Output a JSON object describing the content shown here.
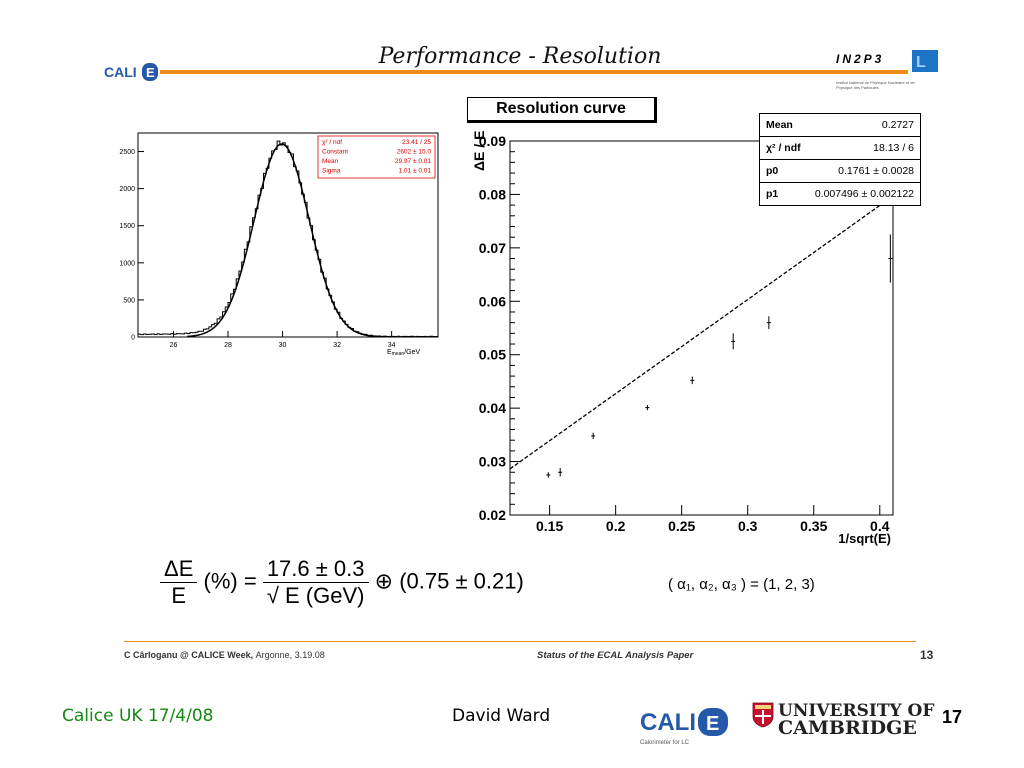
{
  "header": {
    "title": "Performance - Resolution",
    "in2p3": "IN2P3",
    "in2p3_sub": "Institut National de Physique Nucléaire et de Physique des Particules",
    "calice_logo_text": "CALICE",
    "calice_logo_sub": "Calorimeter for ILC"
  },
  "chart_data": [
    {
      "type": "histogram",
      "xlabel": "E_mean /GeV",
      "xlabel_main": "E",
      "xlabel_sub": "mean",
      "xlabel_unit": "/GeV",
      "xlim": [
        24.7,
        35.7
      ],
      "ylim": [
        0,
        2750
      ],
      "xticks": [
        26,
        28,
        30,
        32,
        34
      ],
      "yticks": [
        0,
        500,
        1000,
        1500,
        2000,
        2500
      ],
      "fit": {
        "constant": 2602,
        "mean": 29.97,
        "sigma": 1.01
      },
      "stats": [
        {
          "label": "χ² / ndf",
          "value": "23.41 / 25"
        },
        {
          "label": "Constant",
          "value": "2602 ± 15.0"
        },
        {
          "label": "Mean",
          "value": "29.97 ± 0.01"
        },
        {
          "label": "Sigma",
          "value": "1.01 ± 0.01"
        }
      ],
      "colors": {
        "stats": "#e00000",
        "line": "#000000"
      }
    },
    {
      "type": "scatter",
      "title": "Resolution curve",
      "xlabel": "1/sqrt(E)",
      "ylabel": "ΔE / E",
      "xlim": [
        0.12,
        0.41
      ],
      "ylim": [
        0.02,
        0.09
      ],
      "xticks": [
        0.15,
        0.2,
        0.25,
        0.3,
        0.35,
        0.4
      ],
      "yticks": [
        0.02,
        0.03,
        0.04,
        0.05,
        0.06,
        0.07,
        0.08,
        0.09
      ],
      "points": [
        {
          "x": 0.149,
          "y": 0.0275,
          "err": 0.0005
        },
        {
          "x": 0.158,
          "y": 0.028,
          "err": 0.0008
        },
        {
          "x": 0.183,
          "y": 0.0348,
          "err": 0.0006
        },
        {
          "x": 0.224,
          "y": 0.0401,
          "err": 0.0005
        },
        {
          "x": 0.258,
          "y": 0.0452,
          "err": 0.0007
        },
        {
          "x": 0.289,
          "y": 0.0525,
          "err": 0.0015
        },
        {
          "x": 0.316,
          "y": 0.056,
          "err": 0.0012
        },
        {
          "x": 0.408,
          "y": 0.068,
          "err": 0.0045
        }
      ],
      "fit_line": {
        "p0": 0.1761,
        "p1": 0.007496
      },
      "stats": [
        {
          "label": "Mean",
          "value": "0.2727"
        },
        {
          "label": "χ² / ndf",
          "value": "18.13 / 6"
        },
        {
          "label": "p0",
          "value": "0.1761 ± 0.0028"
        },
        {
          "label": "p1",
          "value": "0.007496 ± 0.002122"
        }
      ]
    }
  ],
  "formula": {
    "lhs_num": "ΔE",
    "lhs_den": "E",
    "percent": "(%) =",
    "num": "17.6 ± 0.3",
    "den": "√ E (GeV)",
    "oplus": "⊕",
    "const": "(0.75 ± 0.21)",
    "alphas": "( α₁, α₂, α₃ ) = (1, 2, 3)"
  },
  "footer": {
    "left_bold": "C Cârloganu @ CALICE Week,",
    "left_rest": "Argonne,  3.19.08",
    "mid": "Status of the ECAL Analysis Paper",
    "page": "13"
  },
  "bottom": {
    "left": "Calice UK 17/4/08",
    "mid": "David Ward",
    "calice_logo_text": "CALICE",
    "calice_logo_sub": "Calorimeter for LC",
    "univ1": "UNIVERSITY OF",
    "univ2": "CAMBRIDGE",
    "slide_number": "17"
  },
  "colors": {
    "accent": "#ec8a1a",
    "green": "#138a13",
    "red": "#e00000"
  }
}
